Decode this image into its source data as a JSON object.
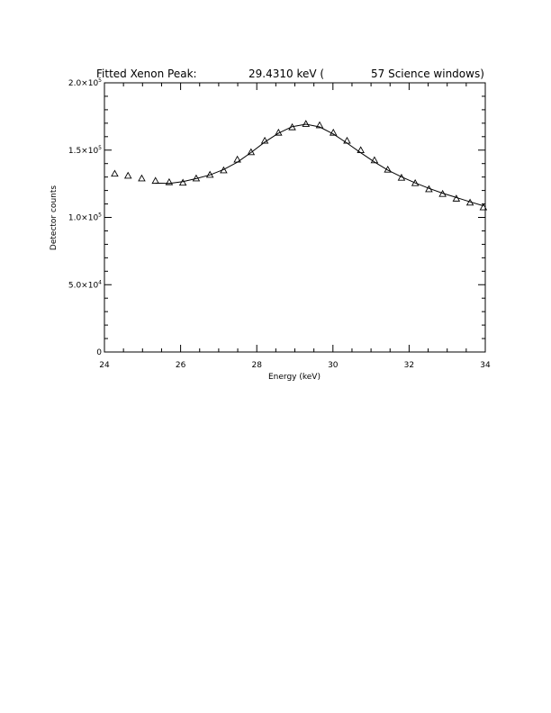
{
  "chart_data": {
    "type": "scatter",
    "title": {
      "prefix": "Fitted Xenon Peak:",
      "value": "29.4310 keV (",
      "suffix": "57 Science windows)"
    },
    "xlabel": "Energy (keV)",
    "ylabel": "Detector counts",
    "xlim": [
      24,
      34
    ],
    "ylim": [
      0,
      200000
    ],
    "x_ticks": [
      24,
      26,
      28,
      30,
      32,
      34
    ],
    "x_tick_labels": [
      "24",
      "26",
      "28",
      "30",
      "32",
      "34"
    ],
    "y_ticks": [
      0,
      50000,
      100000,
      150000,
      200000
    ],
    "y_tick_labels": [
      {
        "mantissa": "0",
        "exp": ""
      },
      {
        "mantissa": "5.0×10",
        "exp": "4"
      },
      {
        "mantissa": "1.0×10",
        "exp": "5"
      },
      {
        "mantissa": "1.5×10",
        "exp": "5"
      },
      {
        "mantissa": "2.0×10",
        "exp": "5"
      }
    ],
    "series": [
      {
        "marker": "triangle",
        "points": [
          [
            24.27,
            132500
          ],
          [
            24.62,
            131000
          ],
          [
            24.98,
            129000
          ],
          [
            25.34,
            127200
          ],
          [
            25.7,
            126200
          ],
          [
            26.06,
            125800
          ],
          [
            26.41,
            129000
          ],
          [
            26.77,
            131700
          ],
          [
            27.13,
            135000
          ],
          [
            27.49,
            143000
          ],
          [
            27.85,
            148500
          ],
          [
            28.21,
            157000
          ],
          [
            28.57,
            163000
          ],
          [
            28.93,
            167000
          ],
          [
            29.29,
            169500
          ],
          [
            29.65,
            168500
          ],
          [
            30.01,
            163000
          ],
          [
            30.37,
            157000
          ],
          [
            30.73,
            150000
          ],
          [
            31.09,
            142500
          ],
          [
            31.44,
            135500
          ],
          [
            31.8,
            129500
          ],
          [
            32.16,
            125500
          ],
          [
            32.52,
            121000
          ],
          [
            32.88,
            117500
          ],
          [
            33.24,
            114000
          ],
          [
            33.6,
            111000
          ],
          [
            33.95,
            107500
          ]
        ]
      },
      {
        "marker": "line",
        "points": [
          [
            25.34,
            125500
          ],
          [
            25.7,
            125200
          ],
          [
            26.06,
            126600
          ],
          [
            26.41,
            128800
          ],
          [
            26.77,
            131600
          ],
          [
            27.13,
            135600
          ],
          [
            27.49,
            141000
          ],
          [
            27.85,
            148200
          ],
          [
            28.21,
            156000
          ],
          [
            28.57,
            162600
          ],
          [
            28.93,
            167400
          ],
          [
            29.29,
            169200
          ],
          [
            29.65,
            167200
          ],
          [
            30.01,
            162000
          ],
          [
            30.37,
            155200
          ],
          [
            30.73,
            148000
          ],
          [
            31.09,
            141200
          ],
          [
            31.44,
            135200
          ],
          [
            31.8,
            130200
          ],
          [
            32.16,
            125600
          ],
          [
            32.52,
            121600
          ],
          [
            32.88,
            118000
          ],
          [
            33.24,
            114800
          ],
          [
            33.6,
            111600
          ],
          [
            33.95,
            108600
          ]
        ]
      }
    ]
  }
}
